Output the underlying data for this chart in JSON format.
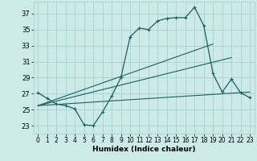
{
  "title": "",
  "xlabel": "Humidex (Indice chaleur)",
  "ylabel": "",
  "bg_color": "#cceae8",
  "grid_color": "#aad4d2",
  "line_color": "#1a6060",
  "xlim": [
    -0.5,
    23.5
  ],
  "ylim": [
    22.0,
    38.5
  ],
  "yticks": [
    23,
    25,
    27,
    29,
    31,
    33,
    35,
    37
  ],
  "xticks": [
    0,
    1,
    2,
    3,
    4,
    5,
    6,
    7,
    8,
    9,
    10,
    11,
    12,
    13,
    14,
    15,
    16,
    17,
    18,
    19,
    20,
    21,
    22,
    23
  ],
  "curve1_x": [
    0,
    1,
    2,
    3,
    4,
    5,
    6,
    7,
    8,
    9,
    10,
    11,
    12,
    13,
    14,
    15,
    16,
    17,
    18,
    19,
    20,
    21,
    22,
    23
  ],
  "curve1_y": [
    27.1,
    26.4,
    25.7,
    25.5,
    25.1,
    23.1,
    23.0,
    24.7,
    26.7,
    29.0,
    34.1,
    35.2,
    35.0,
    36.1,
    36.4,
    36.5,
    36.5,
    37.8,
    35.5,
    29.5,
    27.2,
    28.8,
    27.1,
    26.5
  ],
  "curve2_x": [
    0,
    19
  ],
  "curve2_y": [
    25.5,
    33.2
  ],
  "curve3_x": [
    0,
    21
  ],
  "curve3_y": [
    25.5,
    31.5
  ],
  "curve4_x": [
    0,
    23
  ],
  "curve4_y": [
    25.5,
    27.2
  ]
}
